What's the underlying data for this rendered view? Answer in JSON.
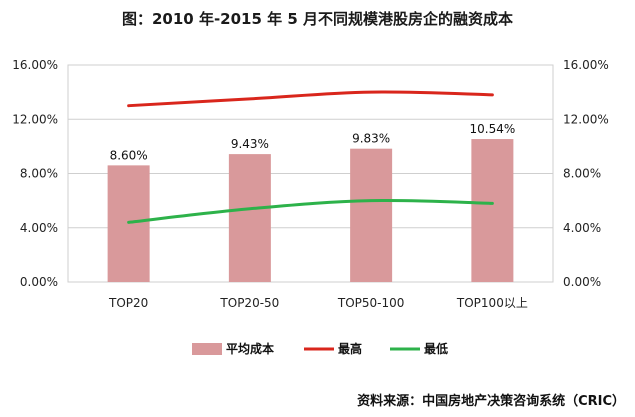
{
  "chart_data": {
    "type": "bar",
    "title": "图：2010 年-2015 年 5 月不同规模港股房企的融资成本",
    "categories": [
      "TOP20",
      "TOP20-50",
      "TOP50-100",
      "TOP100以上"
    ],
    "series": [
      {
        "name": "平均成本",
        "type": "bar",
        "values": [
          8.6,
          9.43,
          9.83,
          10.54
        ],
        "labels": [
          "8.60%",
          "9.43%",
          "9.83%",
          "10.54%"
        ],
        "color": "#d9999b"
      },
      {
        "name": "最高",
        "type": "line",
        "values": [
          13.0,
          13.5,
          14.0,
          13.8
        ],
        "color": "#d9261c"
      },
      {
        "name": "最低",
        "type": "line",
        "values": [
          4.4,
          5.4,
          6.0,
          5.8
        ],
        "color": "#2db24a"
      }
    ],
    "ylim": [
      0,
      16
    ],
    "yticks": [
      "0.00%",
      "4.00%",
      "8.00%",
      "12.00%",
      "16.00%"
    ],
    "ytick_values": [
      0,
      4,
      8,
      12,
      16
    ],
    "y2ticks": [
      "0.00%",
      "4.00%",
      "8.00%",
      "12.00%",
      "16.00%"
    ],
    "grid": "horizontal",
    "legend": "bottom"
  },
  "source": "资料来源：中国房地产决策咨询系统（CRIC）"
}
